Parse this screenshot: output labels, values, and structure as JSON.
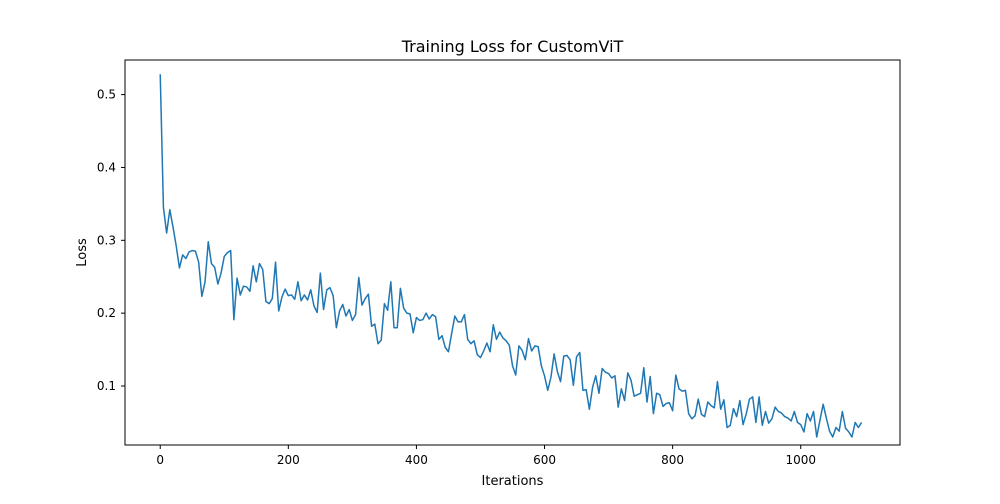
{
  "chart_data": {
    "type": "line",
    "title": "Training Loss for CustomViT",
    "xlabel": "Iterations",
    "ylabel": "Loss",
    "xlim": [
      -55,
      1155
    ],
    "ylim": [
      0.019,
      0.5475
    ],
    "xticks": [
      0,
      200,
      400,
      600,
      800,
      1000
    ],
    "xtick_labels": [
      "0",
      "200",
      "400",
      "600",
      "800",
      "1000"
    ],
    "yticks": [
      0.1,
      0.2,
      0.3,
      0.4,
      0.5
    ],
    "ytick_labels": [
      "0.1",
      "0.2",
      "0.3",
      "0.4",
      "0.5"
    ],
    "grid": false,
    "legend": "none",
    "line_color": "#1f77b4",
    "series": [
      {
        "x": [
          0,
          5,
          10,
          15,
          20,
          25,
          30,
          35,
          40,
          45,
          50,
          55,
          60,
          65,
          70,
          75,
          80,
          85,
          90,
          95,
          100,
          105,
          110,
          115,
          120,
          125,
          130,
          135,
          140,
          145,
          150,
          155,
          160,
          165,
          170,
          175,
          180,
          185,
          190,
          195,
          200,
          205,
          210,
          215,
          220,
          225,
          230,
          235,
          240,
          245,
          250,
          255,
          260,
          265,
          270,
          275,
          280,
          285,
          290,
          295,
          300,
          305,
          310,
          315,
          320,
          325,
          330,
          335,
          340,
          345,
          350,
          355,
          360,
          365,
          370,
          375,
          380,
          385,
          390,
          395,
          400,
          405,
          410,
          415,
          420,
          425,
          430,
          435,
          440,
          445,
          450,
          455,
          460,
          465,
          470,
          475,
          480,
          485,
          490,
          495,
          500,
          505,
          510,
          515,
          520,
          525,
          530,
          535,
          540,
          545,
          550,
          555,
          560,
          565,
          570,
          575,
          580,
          585,
          590,
          595,
          600,
          605,
          610,
          615,
          620,
          625,
          630,
          635,
          640,
          645,
          650,
          655,
          660,
          665,
          670,
          675,
          680,
          685,
          690,
          695,
          700,
          705,
          710,
          715,
          720,
          725,
          730,
          735,
          740,
          745,
          750,
          755,
          760,
          765,
          770,
          775,
          780,
          785,
          790,
          795,
          800,
          805,
          810,
          815,
          820,
          825,
          830,
          835,
          840,
          845,
          850,
          855,
          860,
          865,
          870,
          875,
          880,
          885,
          890,
          895,
          900,
          905,
          910,
          915,
          920,
          925,
          930,
          935,
          940,
          945,
          950,
          955,
          960,
          965,
          970,
          975,
          980,
          985,
          990,
          995,
          1000,
          1005,
          1010,
          1015,
          1020,
          1025,
          1030,
          1035,
          1040,
          1045,
          1050,
          1055,
          1060,
          1065,
          1070,
          1075,
          1080,
          1085,
          1090,
          1095
        ],
        "y": [
          0.528,
          0.345,
          0.31,
          0.342,
          0.318,
          0.292,
          0.262,
          0.28,
          0.275,
          0.284,
          0.286,
          0.285,
          0.27,
          0.223,
          0.243,
          0.298,
          0.268,
          0.263,
          0.24,
          0.255,
          0.278,
          0.283,
          0.286,
          0.191,
          0.248,
          0.225,
          0.237,
          0.236,
          0.23,
          0.265,
          0.243,
          0.268,
          0.26,
          0.216,
          0.213,
          0.22,
          0.27,
          0.203,
          0.222,
          0.233,
          0.224,
          0.225,
          0.219,
          0.243,
          0.217,
          0.225,
          0.218,
          0.232,
          0.21,
          0.201,
          0.255,
          0.205,
          0.232,
          0.235,
          0.224,
          0.18,
          0.203,
          0.212,
          0.196,
          0.205,
          0.19,
          0.198,
          0.249,
          0.211,
          0.22,
          0.226,
          0.182,
          0.185,
          0.158,
          0.163,
          0.213,
          0.204,
          0.243,
          0.18,
          0.18,
          0.234,
          0.207,
          0.2,
          0.199,
          0.173,
          0.194,
          0.19,
          0.191,
          0.2,
          0.192,
          0.198,
          0.195,
          0.164,
          0.169,
          0.153,
          0.147,
          0.172,
          0.196,
          0.188,
          0.188,
          0.198,
          0.164,
          0.158,
          0.162,
          0.143,
          0.139,
          0.148,
          0.159,
          0.147,
          0.184,
          0.164,
          0.174,
          0.166,
          0.162,
          0.156,
          0.128,
          0.115,
          0.155,
          0.149,
          0.136,
          0.165,
          0.148,
          0.155,
          0.154,
          0.128,
          0.114,
          0.094,
          0.112,
          0.144,
          0.12,
          0.106,
          0.141,
          0.142,
          0.136,
          0.101,
          0.14,
          0.146,
          0.094,
          0.095,
          0.068,
          0.098,
          0.114,
          0.09,
          0.124,
          0.119,
          0.117,
          0.111,
          0.114,
          0.071,
          0.096,
          0.08,
          0.118,
          0.108,
          0.086,
          0.088,
          0.09,
          0.125,
          0.078,
          0.113,
          0.062,
          0.09,
          0.088,
          0.072,
          0.076,
          0.077,
          0.066,
          0.115,
          0.096,
          0.093,
          0.094,
          0.062,
          0.055,
          0.059,
          0.082,
          0.061,
          0.058,
          0.078,
          0.073,
          0.07,
          0.106,
          0.068,
          0.081,
          0.043,
          0.046,
          0.069,
          0.058,
          0.08,
          0.047,
          0.062,
          0.082,
          0.085,
          0.05,
          0.085,
          0.046,
          0.065,
          0.049,
          0.055,
          0.071,
          0.065,
          0.063,
          0.058,
          0.056,
          0.052,
          0.065,
          0.05,
          0.047,
          0.037,
          0.062,
          0.052,
          0.065,
          0.03,
          0.053,
          0.075,
          0.056,
          0.038,
          0.03,
          0.043,
          0.038,
          0.065,
          0.042,
          0.037,
          0.03,
          0.05,
          0.043,
          0.05
        ]
      }
    ]
  }
}
